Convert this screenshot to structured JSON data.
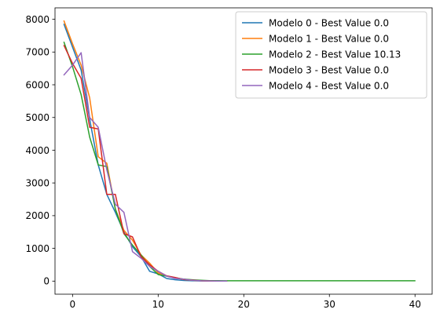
{
  "chart_data": {
    "type": "line",
    "title": "",
    "xlabel": "",
    "ylabel": "",
    "xlim": [
      -2.05,
      42
    ],
    "ylim": [
      -400,
      8350
    ],
    "xticks": [
      0,
      10,
      20,
      30,
      40
    ],
    "yticks": [
      0,
      1000,
      2000,
      3000,
      4000,
      5000,
      6000,
      7000,
      8000
    ],
    "grid": false,
    "legend_position": "top-right",
    "series": [
      {
        "name": "Modelo 0 - Best Value 0.0",
        "color": "#1f77b4",
        "x": [
          -1,
          0,
          1,
          2,
          3,
          4,
          5,
          6,
          7,
          8,
          9,
          10,
          11,
          12,
          13,
          14,
          15,
          16,
          17,
          18
        ],
        "y": [
          7850,
          7150,
          6450,
          4950,
          3550,
          2650,
          2100,
          1500,
          1050,
          750,
          300,
          220,
          80,
          40,
          20,
          10,
          5,
          2,
          1,
          0
        ]
      },
      {
        "name": "Modelo 1 - Best Value 0.0",
        "color": "#ff7f0e",
        "x": [
          -1,
          0,
          1,
          2,
          3,
          4,
          5,
          6,
          7,
          8,
          9,
          10,
          11,
          12,
          13,
          14,
          15,
          16,
          17,
          18
        ],
        "y": [
          7950,
          7250,
          6600,
          5600,
          3800,
          3600,
          2200,
          1550,
          1250,
          800,
          550,
          250,
          150,
          90,
          50,
          25,
          10,
          5,
          2,
          0
        ]
      },
      {
        "name": "Modelo 2 - Best Value 10.13",
        "color": "#2ca02c",
        "x": [
          -1,
          0,
          1,
          2,
          3,
          4,
          5,
          6,
          7,
          8,
          9,
          10,
          11,
          12,
          13,
          14,
          15,
          16,
          17,
          18,
          19,
          20,
          21,
          22,
          23,
          24,
          25,
          26,
          27,
          28,
          29,
          30,
          31,
          32,
          33,
          34,
          35,
          36,
          37,
          38,
          39,
          40
        ],
        "y": [
          7300,
          6550,
          5700,
          4400,
          3550,
          3500,
          2200,
          1450,
          1100,
          800,
          450,
          200,
          150,
          100,
          60,
          40,
          25,
          15,
          12,
          11,
          10.5,
          10.3,
          10.2,
          10.2,
          10.2,
          10.2,
          10.2,
          10.2,
          10.2,
          10.13,
          10.13,
          10.13,
          10.13,
          10.13,
          10.13,
          10.13,
          10.13,
          10.13,
          10.13,
          10.13,
          10.13,
          10.13
        ]
      },
      {
        "name": "Modelo 3 - Best Value 0.0",
        "color": "#d62728",
        "x": [
          -1,
          0,
          1,
          2,
          3,
          4,
          5,
          6,
          7,
          8,
          9,
          10,
          11,
          12,
          13,
          14,
          15,
          16,
          17,
          18
        ],
        "y": [
          7200,
          6650,
          6200,
          4700,
          4650,
          2650,
          2650,
          1450,
          1350,
          750,
          500,
          300,
          160,
          110,
          50,
          30,
          10,
          5,
          2,
          0
        ]
      },
      {
        "name": "Modelo 4 - Best Value 0.0",
        "color": "#9467bd",
        "x": [
          -1,
          0,
          1,
          2,
          3,
          4,
          5,
          6,
          7,
          8,
          9,
          10,
          11,
          12,
          13,
          14,
          15,
          16,
          17,
          18
        ],
        "y": [
          6300,
          6600,
          6980,
          5000,
          4700,
          3400,
          2350,
          2100,
          900,
          700,
          450,
          300,
          150,
          80,
          60,
          25,
          10,
          5,
          2,
          0
        ]
      }
    ]
  }
}
